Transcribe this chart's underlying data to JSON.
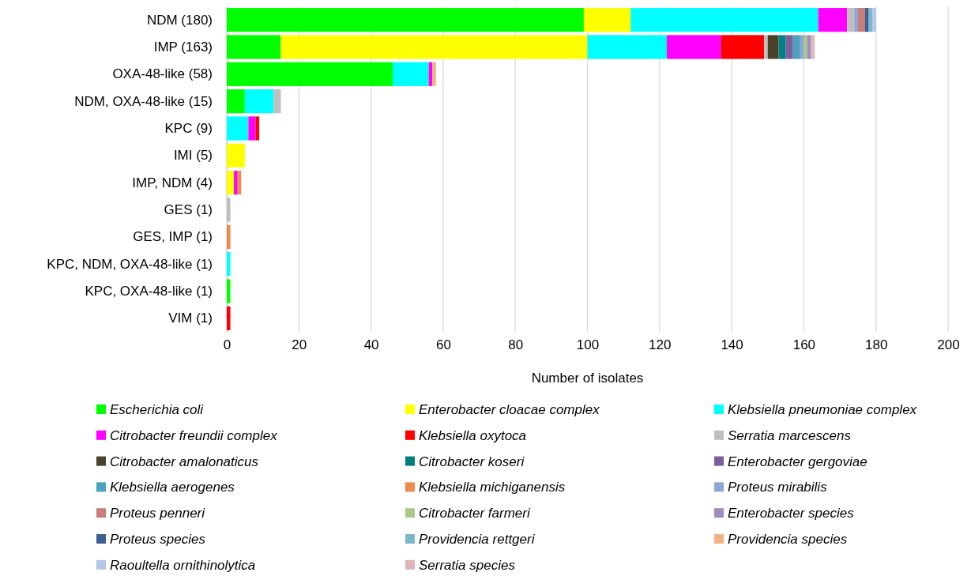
{
  "chart_data": {
    "type": "bar",
    "orientation": "horizontal",
    "stacked": true,
    "xlabel": "Number of isolates",
    "categories": [
      "NDM (180)",
      "IMP (163)",
      "OXA-48-like (58)",
      "NDM, OXA-48-like (15)",
      "KPC (9)",
      "IMI (5)",
      "IMP, NDM (4)",
      "GES (1)",
      "GES, IMP (1)",
      "KPC, NDM, OXA-48-like (1)",
      "KPC, OXA-48-like (1)",
      "VIM (1)"
    ],
    "xlim": [
      0,
      200
    ],
    "xticks": [
      0,
      20,
      40,
      60,
      80,
      100,
      120,
      140,
      160,
      180,
      200
    ],
    "grid": "x",
    "legend": "bottom",
    "series": [
      {
        "name": "Escherichia coli",
        "color": "#00ff00",
        "values": [
          99,
          15,
          46,
          5,
          null,
          null,
          null,
          null,
          null,
          null,
          1,
          null
        ]
      },
      {
        "name": "Enterobacter cloacae complex",
        "color": "#ffff00",
        "values": [
          13,
          85,
          null,
          null,
          null,
          5,
          2,
          null,
          null,
          null,
          null,
          null
        ]
      },
      {
        "name": "Klebsiella pneumoniae complex",
        "color": "#00ffff",
        "values": [
          52,
          22,
          10,
          8,
          6,
          null,
          null,
          null,
          null,
          1,
          null,
          null
        ]
      },
      {
        "name": "Citrobacter freundii complex",
        "color": "#ff00ff",
        "values": [
          8,
          15,
          1,
          null,
          2,
          null,
          1,
          null,
          null,
          null,
          null,
          null
        ]
      },
      {
        "name": "Klebsiella oxytoca",
        "color": "#ff0000",
        "values": [
          null,
          12,
          null,
          null,
          1,
          null,
          null,
          null,
          null,
          null,
          null,
          1
        ]
      },
      {
        "name": "Serratia marcescens",
        "color": "#bfbfbf",
        "values": [
          2,
          1,
          null,
          2,
          null,
          null,
          null,
          1,
          null,
          null,
          null,
          null
        ]
      },
      {
        "name": "Citrobacter amalonaticus",
        "color": "#4b4329",
        "values": [
          null,
          3,
          null,
          null,
          null,
          null,
          null,
          null,
          null,
          null,
          null,
          null
        ]
      },
      {
        "name": "Citrobacter koseri",
        "color": "#008080",
        "values": [
          null,
          2,
          null,
          null,
          null,
          null,
          null,
          null,
          null,
          null,
          null,
          null
        ]
      },
      {
        "name": "Enterobacter gergoviae",
        "color": "#7b5e9c",
        "values": [
          null,
          2,
          null,
          null,
          null,
          null,
          null,
          null,
          null,
          null,
          null,
          null
        ]
      },
      {
        "name": "Klebsiella aerogenes",
        "color": "#4ba3bd",
        "values": [
          null,
          2,
          null,
          null,
          null,
          null,
          null,
          null,
          null,
          null,
          null,
          null
        ]
      },
      {
        "name": "Klebsiella michiganensis",
        "color": "#ee8a4a",
        "values": [
          null,
          null,
          null,
          null,
          null,
          null,
          1,
          null,
          1,
          null,
          null,
          null
        ]
      },
      {
        "name": "Proteus mirabilis",
        "color": "#8ea5d6",
        "values": [
          1,
          1,
          null,
          null,
          null,
          null,
          null,
          null,
          null,
          null,
          null,
          null
        ]
      },
      {
        "name": "Proteus penneri",
        "color": "#c97d7a",
        "values": [
          2,
          null,
          null,
          null,
          null,
          null,
          null,
          null,
          null,
          null,
          null,
          null
        ]
      },
      {
        "name": "Citrobacter farmeri",
        "color": "#a9c98a",
        "values": [
          null,
          1,
          null,
          null,
          null,
          null,
          null,
          null,
          null,
          null,
          null,
          null
        ]
      },
      {
        "name": "Enterobacter species",
        "color": "#a08cc0",
        "values": [
          null,
          1,
          null,
          null,
          null,
          null,
          null,
          null,
          null,
          null,
          null,
          null
        ]
      },
      {
        "name": "Proteus species",
        "color": "#3c5f94",
        "values": [
          1,
          null,
          null,
          null,
          null,
          null,
          null,
          null,
          null,
          null,
          null,
          null
        ]
      },
      {
        "name": "Providencia rettgeri",
        "color": "#7db7cc",
        "values": [
          1,
          null,
          null,
          null,
          null,
          null,
          null,
          null,
          null,
          null,
          null,
          null
        ]
      },
      {
        "name": "Providencia species",
        "color": "#f4b183",
        "values": [
          null,
          null,
          1,
          null,
          null,
          null,
          null,
          null,
          null,
          null,
          null,
          null
        ]
      },
      {
        "name": "Raoultella ornithinolytica",
        "color": "#b4c7e7",
        "values": [
          1,
          null,
          null,
          null,
          null,
          null,
          null,
          null,
          null,
          null,
          null,
          null
        ]
      },
      {
        "name": "Serratia species",
        "color": "#e0b4b8",
        "values": [
          null,
          1,
          null,
          null,
          null,
          null,
          null,
          null,
          null,
          null,
          null,
          null
        ]
      }
    ]
  }
}
